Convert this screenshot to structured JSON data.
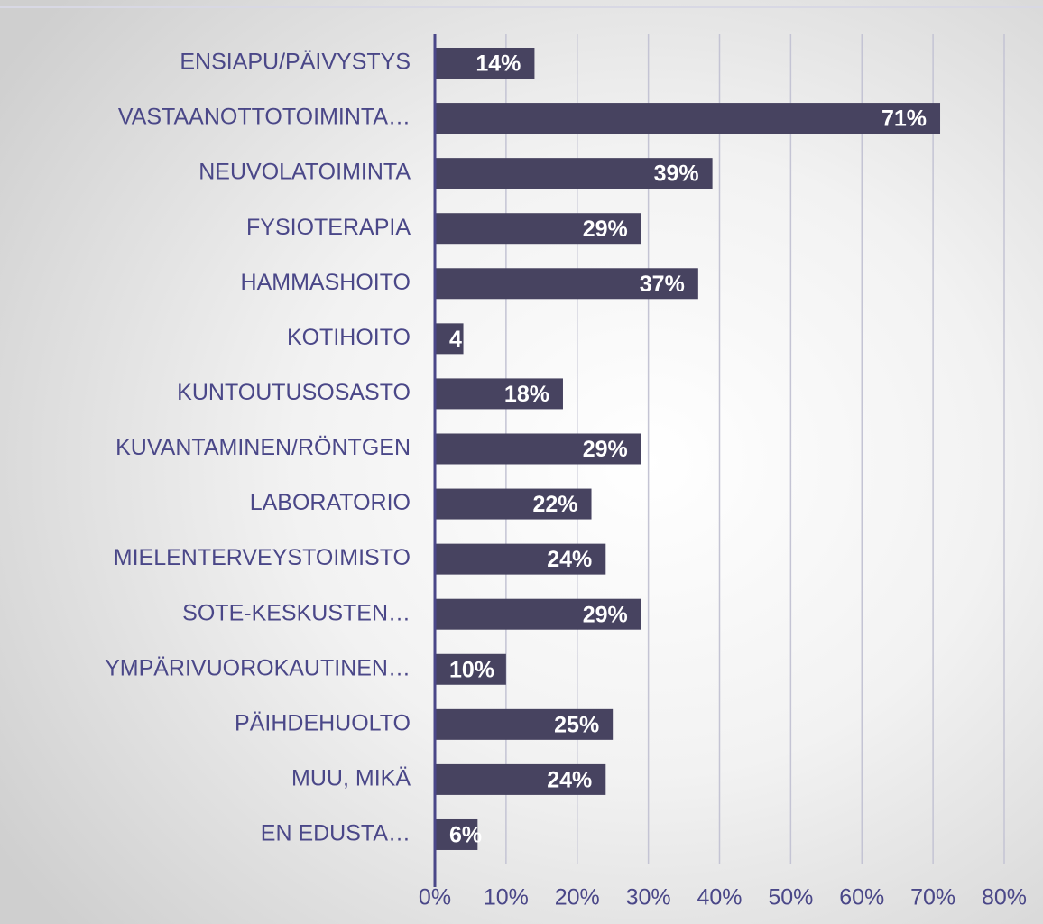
{
  "chart_data": {
    "type": "barh",
    "categories": [
      "ENSIAPU/PÄIVYSTYS",
      "VASTAANOTTOTOIMINTA…",
      "NEUVOLATOIMINTA",
      "FYSIOTERAPIA",
      "HAMMASHOITO",
      "KOTIHOITO",
      "KUNTOUTUSOSASTO",
      "KUVANTAMINEN/RÖNTGEN",
      "LABORATORIO",
      "MIELENTERVEYSTOIMISTO",
      "SOTE-KESKUSTEN…",
      "YMPÄRIVUOROKAUTINEN…",
      "PÄIHDEHUOLTO",
      "MUU, MIKÄ",
      "EN EDUSTA…"
    ],
    "values": [
      14,
      71,
      39,
      29,
      37,
      4,
      18,
      29,
      22,
      24,
      29,
      10,
      25,
      24,
      6
    ],
    "value_labels": [
      "14%",
      "71%",
      "39%",
      "29%",
      "37%",
      "4",
      "18%",
      "29%",
      "22%",
      "24%",
      "29%",
      "10%",
      "25%",
      "24%",
      "6%"
    ],
    "color": "#474360",
    "xlim": [
      0,
      80
    ],
    "xticks": [
      {
        "value": 0,
        "label": "0%"
      },
      {
        "value": 10,
        "label": "10%"
      },
      {
        "value": 20,
        "label": "20%"
      },
      {
        "value": 30,
        "label": "30%"
      },
      {
        "value": 40,
        "label": "40%"
      },
      {
        "value": 50,
        "label": "50%"
      },
      {
        "value": 60,
        "label": "60%"
      },
      {
        "value": 70,
        "label": "70%"
      },
      {
        "value": 80,
        "label": "80%"
      }
    ],
    "grid": true
  }
}
